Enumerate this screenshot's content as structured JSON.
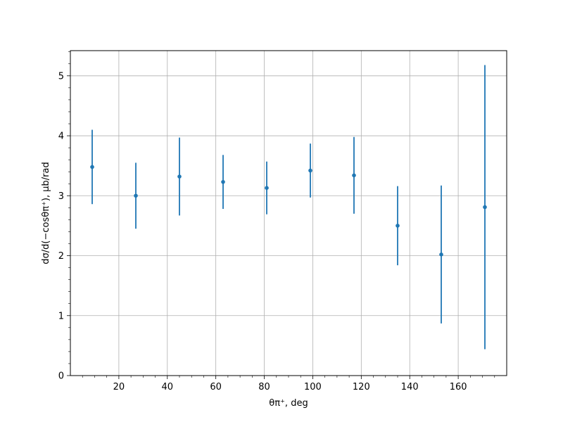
{
  "chart_data": {
    "type": "scatter",
    "title": "",
    "xlabel": "θπ⁺, deg",
    "ylabel": "dσ/d(−cosθπ⁺), μb/rad",
    "xlim": [
      0,
      180
    ],
    "ylim": [
      0,
      5.42
    ],
    "x_ticks": [
      20,
      40,
      60,
      80,
      100,
      120,
      140,
      160
    ],
    "y_ticks": [
      0,
      1,
      2,
      3,
      4,
      5
    ],
    "x_ticks_text": [
      "20",
      "40",
      "60",
      "80",
      "100",
      "120",
      "140",
      "160"
    ],
    "y_ticks_text": [
      "0",
      "1",
      "2",
      "3",
      "4",
      "5"
    ],
    "grid": true,
    "series": [
      {
        "color": "#1f77b4",
        "x": [
          9,
          27,
          45,
          63,
          81,
          99,
          117,
          135,
          153,
          171
        ],
        "y": [
          3.48,
          3.0,
          3.32,
          3.23,
          3.13,
          3.42,
          3.34,
          2.5,
          2.02,
          2.81
        ],
        "yerr": [
          0.62,
          0.55,
          0.65,
          0.45,
          0.44,
          0.45,
          0.64,
          0.66,
          1.15,
          2.37
        ]
      }
    ]
  }
}
